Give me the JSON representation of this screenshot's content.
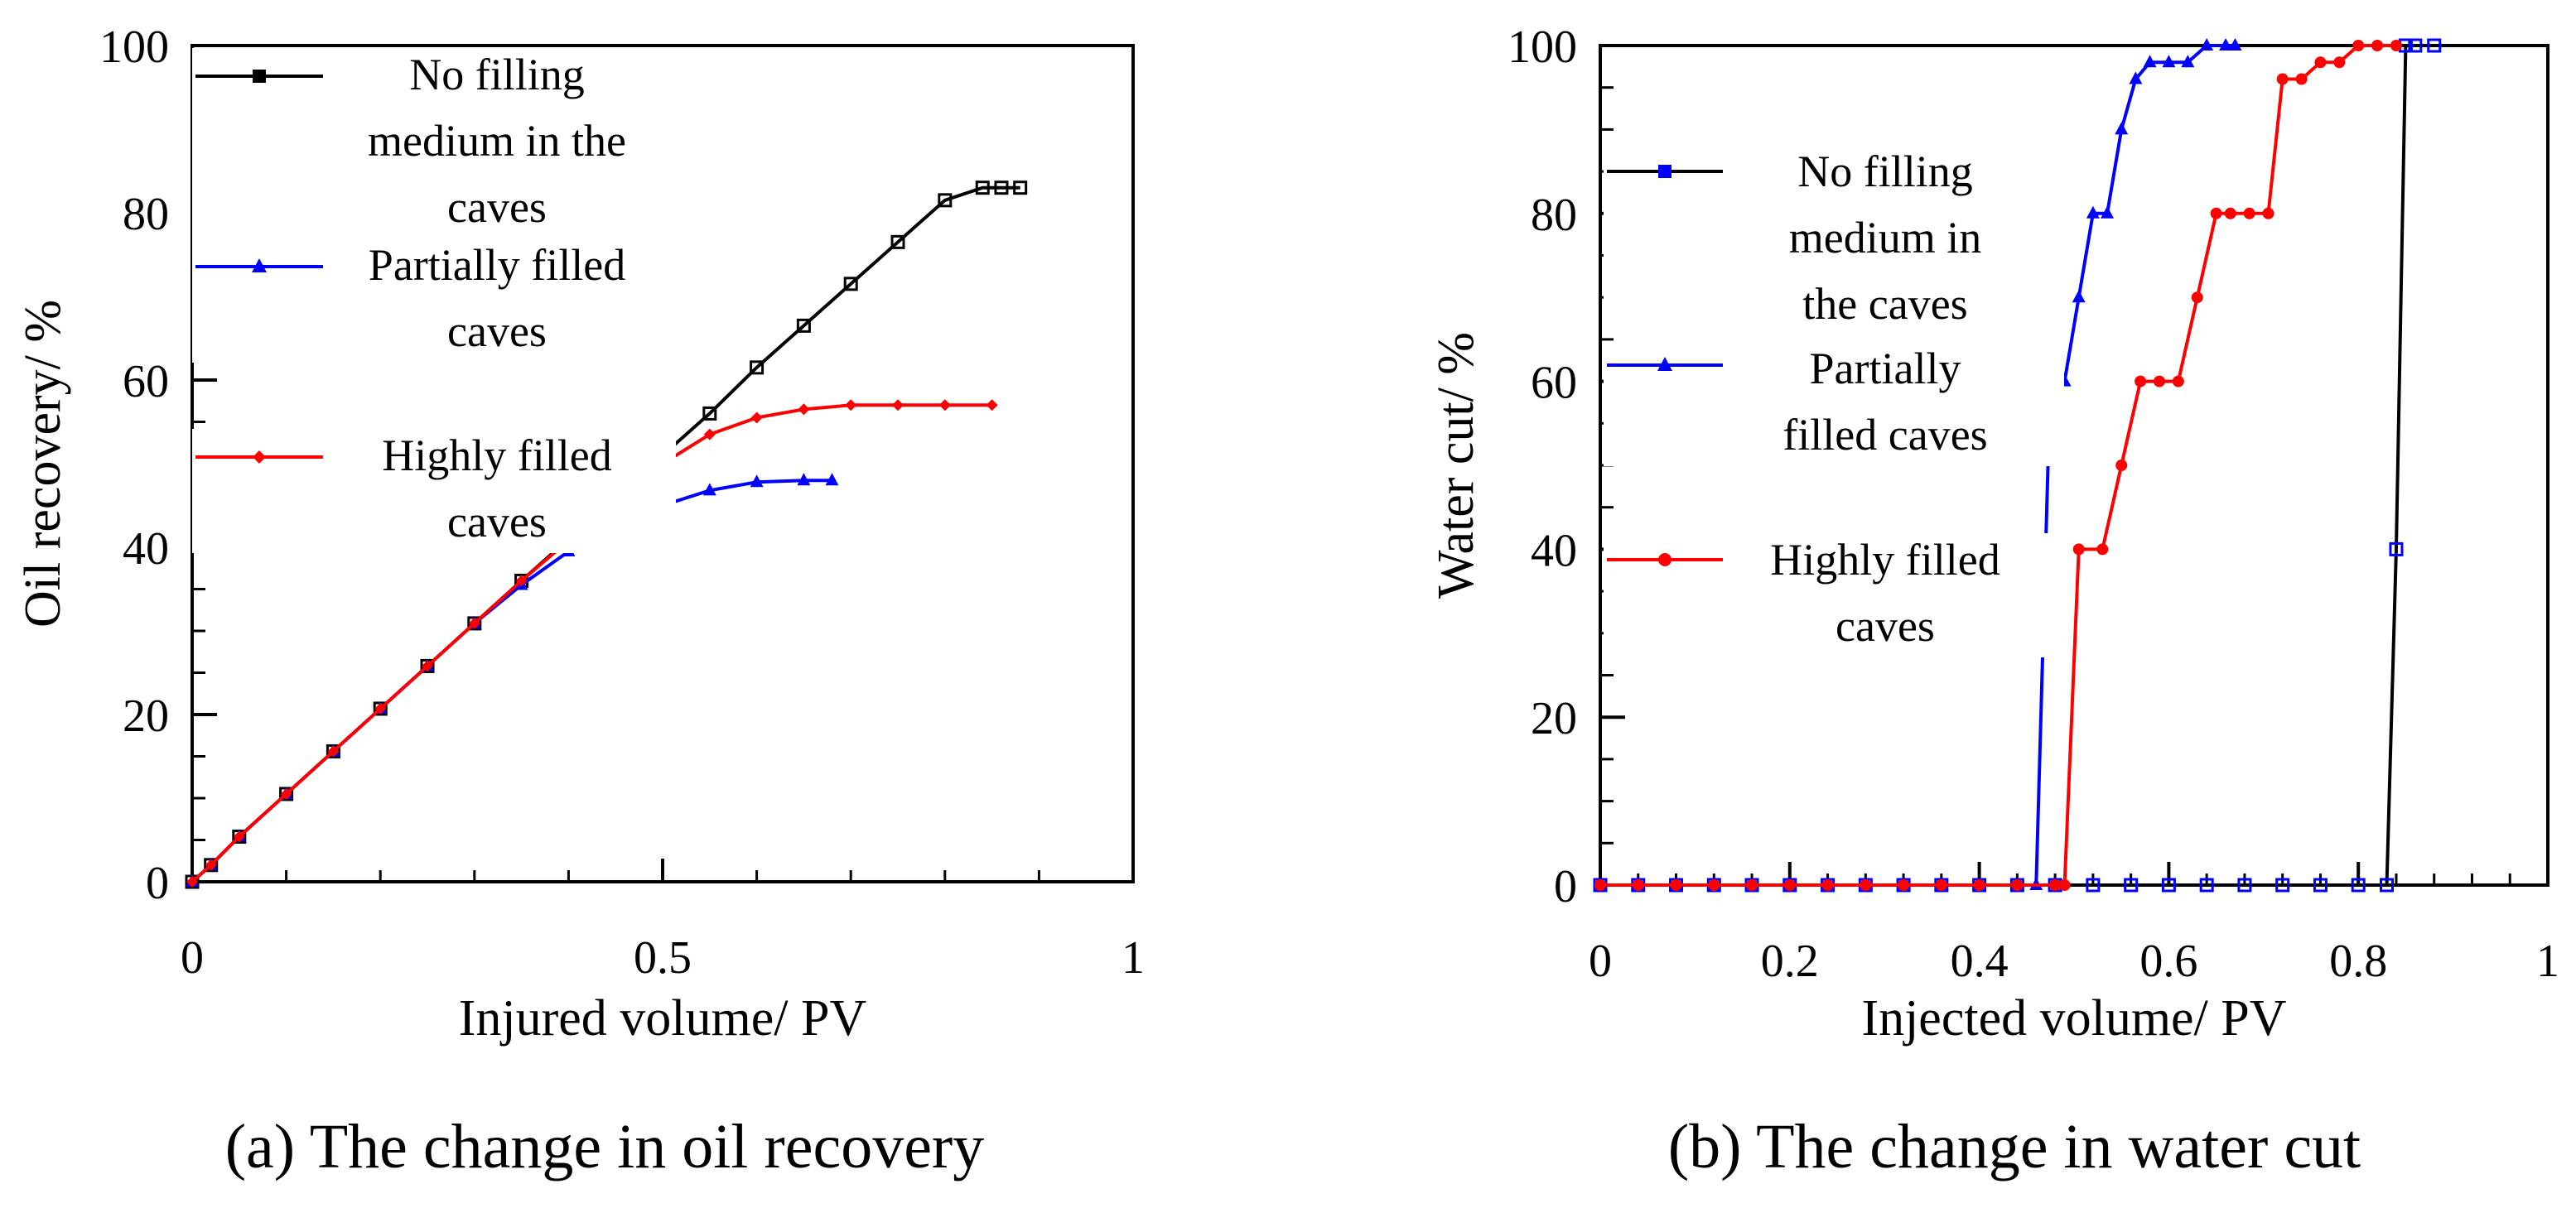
{
  "chart_data": [
    {
      "type": "line",
      "caption": "(a) The change in oil recovery",
      "xlabel": "Injured volume/ PV",
      "ylabel": "Oil recovery/ %",
      "xlim": [
        0,
        1
      ],
      "ylim": [
        0,
        100
      ],
      "xticks": [
        "0",
        "0.5",
        "1"
      ],
      "xtick_values": [
        0,
        0.5,
        1
      ],
      "yticks": [
        "0",
        "20",
        "40",
        "60",
        "80",
        "100"
      ],
      "ytick_values": [
        0,
        20,
        40,
        60,
        80,
        100
      ],
      "legend_position": "top-left",
      "series": [
        {
          "name": "No filling medium in the caves",
          "legend_lines": [
            "No filling",
            "medium in the",
            "caves"
          ],
          "color": "#000000",
          "marker": "square",
          "x": [
            0,
            0.02,
            0.05,
            0.1,
            0.15,
            0.2,
            0.25,
            0.3,
            0.35,
            0.4,
            0.45,
            0.5,
            0.55,
            0.6,
            0.65,
            0.7,
            0.75,
            0.8,
            0.84,
            0.86,
            0.88
          ],
          "y": [
            0,
            2,
            5.4,
            10.5,
            15.6,
            20.7,
            25.8,
            30.9,
            36,
            41,
            46,
            51,
            56,
            61.5,
            66.5,
            71.5,
            76.5,
            81.5,
            83,
            83,
            83
          ]
        },
        {
          "name": "Partially filled caves",
          "legend_lines": [
            "Partially filled",
            "caves"
          ],
          "color": "#0000ff",
          "marker": "triangle",
          "x": [
            0,
            0.02,
            0.05,
            0.1,
            0.15,
            0.2,
            0.25,
            0.3,
            0.35,
            0.4,
            0.45,
            0.5,
            0.55,
            0.6,
            0.65,
            0.68
          ],
          "y": [
            0,
            2,
            5.4,
            10.5,
            15.6,
            20.7,
            25.8,
            30.9,
            35.5,
            39.5,
            42.5,
            45,
            46.8,
            47.8,
            48,
            48
          ]
        },
        {
          "name": "Highly filled caves",
          "legend_lines": [
            "Highly filled",
            "caves"
          ],
          "color": "#ff0000",
          "marker": "diamond",
          "x": [
            0,
            0.02,
            0.05,
            0.1,
            0.15,
            0.2,
            0.25,
            0.3,
            0.35,
            0.4,
            0.45,
            0.5,
            0.55,
            0.6,
            0.65,
            0.7,
            0.75,
            0.8,
            0.85
          ],
          "y": [
            0,
            2,
            5.4,
            10.5,
            15.6,
            20.7,
            25.8,
            30.9,
            36,
            40.8,
            45.5,
            50,
            53.5,
            55.5,
            56.5,
            57,
            57,
            57,
            57
          ]
        }
      ]
    },
    {
      "type": "line",
      "caption": "(b) The change in water cut",
      "xlabel": "Injected volume/ PV",
      "ylabel": "Water cut/ %",
      "xlim": [
        0,
        1
      ],
      "ylim": [
        0,
        100
      ],
      "xticks": [
        "0",
        "0.2",
        "0.4",
        "0.6",
        "0.8",
        "1"
      ],
      "xtick_values": [
        0,
        0.2,
        0.4,
        0.6,
        0.8,
        1
      ],
      "yticks": [
        "0",
        "20",
        "40",
        "60",
        "80",
        "100"
      ],
      "ytick_values": [
        0,
        20,
        40,
        60,
        80,
        100
      ],
      "legend_position": "left",
      "series": [
        {
          "name": "No filling medium in the caves",
          "legend_lines": [
            "No filling",
            "medium in",
            "the caves"
          ],
          "color": "#000000",
          "marker_color": "#0000ff",
          "marker": "square",
          "x": [
            0,
            0.04,
            0.08,
            0.12,
            0.16,
            0.2,
            0.24,
            0.28,
            0.32,
            0.36,
            0.4,
            0.44,
            0.48,
            0.52,
            0.56,
            0.6,
            0.64,
            0.68,
            0.72,
            0.76,
            0.8,
            0.83,
            0.84,
            0.85,
            0.86,
            0.88
          ],
          "y": [
            0,
            0,
            0,
            0,
            0,
            0,
            0,
            0,
            0,
            0,
            0,
            0,
            0,
            0,
            0,
            0,
            0,
            0,
            0,
            0,
            0,
            0,
            40,
            100,
            100,
            100
          ]
        },
        {
          "name": "Partially filled caves",
          "legend_lines": [
            "Partially",
            "filled caves"
          ],
          "color": "#0000ff",
          "marker": "triangle",
          "x": [
            0,
            0.04,
            0.08,
            0.12,
            0.16,
            0.2,
            0.24,
            0.28,
            0.32,
            0.36,
            0.4,
            0.44,
            0.46,
            0.475,
            0.49,
            0.505,
            0.52,
            0.535,
            0.55,
            0.565,
            0.58,
            0.6,
            0.62,
            0.64,
            0.66,
            0.67
          ],
          "y": [
            0,
            0,
            0,
            0,
            0,
            0,
            0,
            0,
            0,
            0,
            0,
            0,
            0,
            60,
            60,
            70,
            80,
            80,
            90,
            96,
            98,
            98,
            98,
            100,
            100,
            100
          ]
        },
        {
          "name": "Highly filled caves",
          "legend_lines": [
            "Highly filled",
            "caves"
          ],
          "color": "#ff0000",
          "marker": "circle",
          "x": [
            0,
            0.04,
            0.08,
            0.12,
            0.16,
            0.2,
            0.24,
            0.28,
            0.32,
            0.36,
            0.4,
            0.44,
            0.48,
            0.49,
            0.505,
            0.53,
            0.55,
            0.57,
            0.59,
            0.61,
            0.63,
            0.65,
            0.665,
            0.685,
            0.705,
            0.72,
            0.74,
            0.76,
            0.78,
            0.8,
            0.82,
            0.84
          ],
          "y": [
            0,
            0,
            0,
            0,
            0,
            0,
            0,
            0,
            0,
            0,
            0,
            0,
            0,
            0,
            40,
            40,
            50,
            60,
            60,
            60,
            70,
            80,
            80,
            80,
            80,
            96,
            96,
            98,
            98,
            100,
            100,
            100
          ]
        }
      ]
    }
  ]
}
